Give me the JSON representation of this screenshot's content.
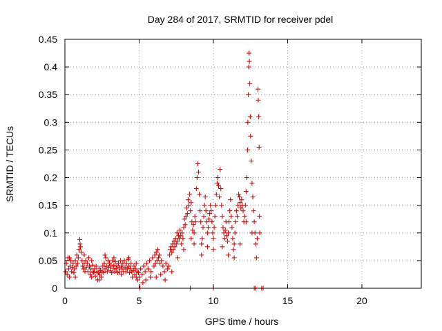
{
  "chart_data": {
    "type": "scatter",
    "title": "Day 284 of 2017, SRMTID for receiver pdel",
    "xlabel": "GPS time / hours",
    "ylabel": "SRMTID / TECUs",
    "xlim": [
      0,
      24
    ],
    "ylim": [
      0,
      0.45
    ],
    "x_ticks": [
      0,
      5,
      10,
      15,
      20
    ],
    "x_tick_labels": [
      "0",
      "5",
      "10",
      "15",
      "20"
    ],
    "y_ticks": [
      0,
      0.05,
      0.1,
      0.15,
      0.2,
      0.25,
      0.3,
      0.35,
      0.4,
      0.45
    ],
    "y_tick_labels": [
      "0",
      "0.05",
      "0.1",
      "0.15",
      "0.2",
      "0.25",
      "0.3",
      "0.35",
      "0.4",
      "0.45"
    ],
    "grid": true,
    "marker": "+",
    "series": [
      {
        "name": "SRMTID",
        "color": "#e00000",
        "points": [
          [
            0.05,
            0.03
          ],
          [
            0.1,
            0.045
          ],
          [
            0.15,
            0.025
          ],
          [
            0.2,
            0.055
          ],
          [
            0.25,
            0.035
          ],
          [
            0.3,
            0.02
          ],
          [
            0.35,
            0.04
          ],
          [
            0.4,
            0.05
          ],
          [
            0.45,
            0.03
          ],
          [
            0.5,
            0.038
          ],
          [
            0.55,
            0.045
          ],
          [
            0.6,
            0.028
          ],
          [
            0.65,
            0.035
          ],
          [
            0.7,
            0.05
          ],
          [
            0.75,
            0.04
          ],
          [
            0.8,
            0.06
          ],
          [
            0.85,
            0.045
          ],
          [
            0.9,
            0.055
          ],
          [
            0.95,
            0.07
          ],
          [
            1.0,
            0.088
          ],
          [
            1.02,
            0.08
          ],
          [
            1.05,
            0.075
          ],
          [
            1.1,
            0.065
          ],
          [
            1.15,
            0.05
          ],
          [
            1.2,
            0.04
          ],
          [
            1.25,
            0.035
          ],
          [
            1.3,
            0.045
          ],
          [
            1.35,
            0.03
          ],
          [
            1.4,
            0.05
          ],
          [
            1.45,
            0.038
          ],
          [
            1.5,
            0.045
          ],
          [
            1.55,
            0.03
          ],
          [
            1.6,
            0.055
          ],
          [
            1.65,
            0.04
          ],
          [
            1.7,
            0.025
          ],
          [
            1.75,
            0.035
          ],
          [
            1.8,
            0.02
          ],
          [
            1.85,
            0.042
          ],
          [
            1.9,
            0.03
          ],
          [
            1.95,
            0.028
          ],
          [
            2.0,
            0.035
          ],
          [
            2.05,
            0.022
          ],
          [
            2.1,
            0.04
          ],
          [
            2.15,
            0.03
          ],
          [
            2.2,
            0.015
          ],
          [
            2.25,
            0.028
          ],
          [
            2.3,
            0.036
          ],
          [
            2.35,
            0.024
          ],
          [
            2.4,
            0.032
          ],
          [
            2.45,
            0.02
          ],
          [
            2.5,
            0.03
          ],
          [
            2.55,
            0.04
          ],
          [
            2.6,
            0.028
          ],
          [
            2.65,
            0.045
          ],
          [
            2.7,
            0.035
          ],
          [
            2.75,
            0.055
          ],
          [
            2.8,
            0.04
          ],
          [
            2.85,
            0.03
          ],
          [
            2.9,
            0.05
          ],
          [
            2.95,
            0.038
          ],
          [
            3.0,
            0.045
          ],
          [
            3.05,
            0.032
          ],
          [
            3.1,
            0.04
          ],
          [
            3.15,
            0.028
          ],
          [
            3.2,
            0.05
          ],
          [
            3.25,
            0.036
          ],
          [
            3.3,
            0.042
          ],
          [
            3.35,
            0.03
          ],
          [
            3.4,
            0.048
          ],
          [
            3.45,
            0.035
          ],
          [
            3.5,
            0.04
          ],
          [
            3.55,
            0.028
          ],
          [
            3.6,
            0.045
          ],
          [
            3.65,
            0.038
          ],
          [
            3.7,
            0.03
          ],
          [
            3.75,
            0.05
          ],
          [
            3.8,
            0.04
          ],
          [
            3.85,
            0.035
          ],
          [
            3.9,
            0.045
          ],
          [
            3.95,
            0.03
          ],
          [
            4.0,
            0.05
          ],
          [
            4.05,
            0.038
          ],
          [
            4.1,
            0.03
          ],
          [
            4.15,
            0.045
          ],
          [
            4.2,
            0.035
          ],
          [
            4.25,
            0.052
          ],
          [
            4.3,
            0.04
          ],
          [
            4.35,
            0.028
          ],
          [
            4.4,
            0.036
          ],
          [
            4.45,
            0.045
          ],
          [
            4.5,
            0.03
          ],
          [
            4.55,
            0.02
          ],
          [
            4.6,
            0.032
          ],
          [
            4.65,
            0.04
          ],
          [
            4.7,
            0.025
          ],
          [
            4.75,
            0.035
          ],
          [
            4.8,
            0.02
          ],
          [
            4.85,
            0.03
          ],
          [
            4.9,
            0.015
          ],
          [
            4.95,
            0.028
          ],
          [
            5.0,
            0.02
          ],
          [
            5.1,
            0.035
          ],
          [
            5.2,
            0.025
          ],
          [
            5.3,
            0.04
          ],
          [
            5.4,
            0.03
          ],
          [
            5.5,
            0.045
          ],
          [
            5.6,
            0.035
          ],
          [
            5.7,
            0.05
          ],
          [
            5.8,
            0.03
          ],
          [
            5.9,
            0.055
          ],
          [
            6.0,
            0.04
          ],
          [
            6.05,
            0.06
          ],
          [
            6.1,
            0.045
          ],
          [
            6.15,
            0.065
          ],
          [
            6.2,
            0.05
          ],
          [
            6.25,
            0.07
          ],
          [
            6.3,
            0.055
          ],
          [
            6.35,
            0.06
          ],
          [
            6.4,
            0.045
          ],
          [
            6.5,
            0.05
          ],
          [
            6.6,
            0.04
          ],
          [
            6.7,
            0.03
          ],
          [
            6.8,
            0.045
          ],
          [
            6.9,
            0.035
          ],
          [
            7.0,
            0.04
          ],
          [
            7.05,
            0.06
          ],
          [
            7.1,
            0.07
          ],
          [
            7.15,
            0.075
          ],
          [
            7.2,
            0.065
          ],
          [
            7.25,
            0.08
          ],
          [
            7.3,
            0.07
          ],
          [
            7.35,
            0.085
          ],
          [
            7.4,
            0.075
          ],
          [
            7.45,
            0.09
          ],
          [
            7.5,
            0.08
          ],
          [
            7.55,
            0.1
          ],
          [
            7.6,
            0.085
          ],
          [
            7.65,
            0.095
          ],
          [
            7.7,
            0.09
          ],
          [
            7.75,
            0.105
          ],
          [
            7.8,
            0.095
          ],
          [
            7.85,
            0.08
          ],
          [
            7.9,
            0.1
          ],
          [
            7.95,
            0.09
          ],
          [
            8.0,
            0.11
          ],
          [
            8.05,
            0.125
          ],
          [
            8.1,
            0.115
          ],
          [
            8.15,
            0.13
          ],
          [
            8.2,
            0.145
          ],
          [
            8.25,
            0.135
          ],
          [
            8.3,
            0.16
          ],
          [
            8.35,
            0.15
          ],
          [
            8.4,
            0.17
          ],
          [
            8.45,
            0.14
          ],
          [
            8.5,
            0.155
          ],
          [
            8.55,
            0.12
          ],
          [
            8.6,
            0.105
          ],
          [
            8.65,
            0.115
          ],
          [
            8.7,
            0.1
          ],
          [
            8.75,
            0.13
          ],
          [
            8.8,
            0.12
          ],
          [
            8.85,
            0.18
          ],
          [
            8.9,
            0.2
          ],
          [
            8.95,
            0.225
          ],
          [
            9.0,
            0.21
          ],
          [
            9.05,
            0.17
          ],
          [
            9.1,
            0.14
          ],
          [
            9.15,
            0.12
          ],
          [
            9.2,
            0.08
          ],
          [
            9.25,
            0.09
          ],
          [
            9.3,
            0.11
          ],
          [
            9.35,
            0.13
          ],
          [
            9.4,
            0.15
          ],
          [
            9.45,
            0.165
          ],
          [
            9.5,
            0.14
          ],
          [
            9.55,
            0.12
          ],
          [
            9.6,
            0.1
          ],
          [
            9.65,
            0.11
          ],
          [
            9.7,
            0.125
          ],
          [
            9.75,
            0.135
          ],
          [
            9.8,
            0.15
          ],
          [
            9.85,
            0.14
          ],
          [
            9.9,
            0.12
          ],
          [
            9.95,
            0.1
          ],
          [
            10.0,
            0.09
          ],
          [
            10.05,
            0.11
          ],
          [
            10.1,
            0.13
          ],
          [
            10.15,
            0.15
          ],
          [
            10.2,
            0.17
          ],
          [
            10.25,
            0.19
          ],
          [
            10.3,
            0.2
          ],
          [
            10.35,
            0.185
          ],
          [
            10.4,
            0.165
          ],
          [
            10.45,
            0.215
          ],
          [
            10.5,
            0.18
          ],
          [
            10.55,
            0.15
          ],
          [
            10.6,
            0.13
          ],
          [
            10.65,
            0.11
          ],
          [
            10.7,
            0.1
          ],
          [
            10.75,
            0.09
          ],
          [
            10.8,
            0.105
          ],
          [
            10.85,
            0.12
          ],
          [
            10.9,
            0.095
          ],
          [
            10.95,
            0.085
          ],
          [
            11.0,
            0.1
          ],
          [
            11.05,
            0.12
          ],
          [
            11.1,
            0.14
          ],
          [
            11.15,
            0.16
          ],
          [
            11.2,
            0.13
          ],
          [
            11.25,
            0.11
          ],
          [
            11.3,
            0.09
          ],
          [
            11.35,
            0.07
          ],
          [
            11.4,
            0.08
          ],
          [
            11.45,
            0.1
          ],
          [
            11.5,
            0.12
          ],
          [
            11.55,
            0.14
          ],
          [
            11.6,
            0.13
          ],
          [
            11.65,
            0.15
          ],
          [
            11.7,
            0.17
          ],
          [
            11.75,
            0.165
          ],
          [
            11.8,
            0.155
          ],
          [
            11.85,
            0.145
          ],
          [
            11.9,
            0.16
          ],
          [
            11.95,
            0.15
          ],
          [
            12.0,
            0.14
          ],
          [
            12.05,
            0.12
          ],
          [
            12.1,
            0.13
          ],
          [
            12.15,
            0.15
          ],
          [
            12.2,
            0.175
          ],
          [
            12.25,
            0.2
          ],
          [
            12.3,
            0.25
          ],
          [
            12.32,
            0.3
          ],
          [
            12.35,
            0.35
          ],
          [
            12.38,
            0.4
          ],
          [
            12.4,
            0.425
          ],
          [
            12.42,
            0.41
          ],
          [
            12.45,
            0.37
          ],
          [
            12.48,
            0.31
          ],
          [
            12.5,
            0.275
          ],
          [
            12.55,
            0.23
          ],
          [
            12.6,
            0.19
          ],
          [
            12.65,
            0.165
          ],
          [
            12.7,
            0.14
          ],
          [
            12.75,
            0.12
          ],
          [
            12.8,
            0.1
          ],
          [
            12.85,
            0.08
          ],
          [
            12.9,
            0.055
          ],
          [
            12.95,
            0.09
          ],
          [
            13.0,
            0.36
          ],
          [
            13.02,
            0.34
          ],
          [
            13.05,
            0.31
          ],
          [
            13.08,
            0.255
          ],
          [
            13.1,
            0.13
          ],
          [
            13.12,
            0.1
          ],
          [
            0.3,
            0.055
          ],
          [
            0.7,
            0.02
          ],
          [
            1.3,
            0.06
          ],
          [
            1.8,
            0.05
          ],
          [
            2.3,
            0.015
          ],
          [
            2.7,
            0.06
          ],
          [
            3.3,
            0.055
          ],
          [
            3.8,
            0.025
          ],
          [
            4.3,
            0.055
          ],
          [
            4.8,
            0.045
          ],
          [
            5.25,
            0.01
          ],
          [
            5.45,
            0.015
          ],
          [
            5.75,
            0.02
          ],
          [
            6.15,
            0.02
          ],
          [
            6.45,
            0.025
          ],
          [
            6.75,
            0.015
          ],
          [
            7.2,
            0.03
          ],
          [
            7.6,
            0.055
          ],
          [
            8.0,
            0.07
          ],
          [
            8.5,
            0.09
          ],
          [
            8.7,
            0.08
          ],
          [
            9.2,
            0.06
          ],
          [
            9.6,
            0.075
          ],
          [
            10.0,
            0.07
          ],
          [
            10.6,
            0.075
          ],
          [
            11.0,
            0.06
          ],
          [
            11.4,
            0.055
          ],
          [
            11.8,
            0.08
          ],
          [
            12.2,
            0.12
          ],
          [
            12.6,
            0.1
          ],
          [
            8.45,
            0.0
          ],
          [
            10.0,
            0.0
          ],
          [
            12.75,
            0.0
          ],
          [
            12.85,
            0.0
          ],
          [
            13.25,
            0.0
          ],
          [
            13.35,
            0.0
          ],
          [
            5.05,
            0.0
          ]
        ]
      }
    ]
  }
}
